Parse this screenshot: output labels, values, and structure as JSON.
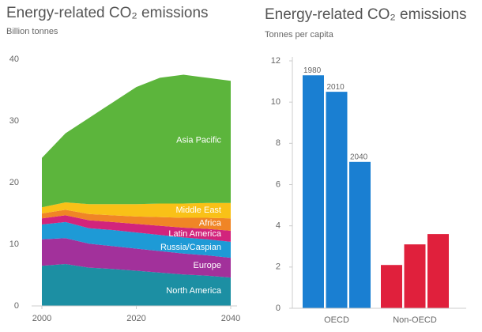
{
  "chart_data": [
    {
      "type": "stacked_area",
      "title": "Energy-related CO₂ emissions",
      "subtitle": "Billion tonnes",
      "x": [
        2000,
        2005,
        2010,
        2015,
        2020,
        2025,
        2030,
        2035,
        2040
      ],
      "xlim": [
        2000,
        2040
      ],
      "xticks": [
        2000,
        2020,
        2040
      ],
      "ylim": [
        0,
        40
      ],
      "yticks": [
        0,
        10,
        20,
        30,
        40
      ],
      "series": [
        {
          "name": "North America",
          "color": "#1c8fa3",
          "values": [
            6.5,
            6.8,
            6.2,
            6.0,
            5.7,
            5.4,
            5.1,
            4.9,
            4.6
          ]
        },
        {
          "name": "Europe",
          "color": "#a2319b",
          "values": [
            4.3,
            4.2,
            3.9,
            3.7,
            3.6,
            3.5,
            3.4,
            3.3,
            3.2
          ]
        },
        {
          "name": "Russia/Caspian",
          "color": "#1e9ad6",
          "values": [
            2.4,
            2.6,
            2.5,
            2.6,
            2.6,
            2.6,
            2.6,
            2.6,
            2.6
          ]
        },
        {
          "name": "Latin America",
          "color": "#d2247c",
          "values": [
            1.0,
            1.1,
            1.3,
            1.3,
            1.4,
            1.5,
            1.6,
            1.7,
            1.8
          ]
        },
        {
          "name": "Africa",
          "color": "#f08526",
          "values": [
            0.8,
            0.9,
            1.0,
            1.1,
            1.2,
            1.4,
            1.6,
            1.8,
            2.0
          ]
        },
        {
          "name": "Middle East",
          "color": "#f9c117",
          "values": [
            1.0,
            1.2,
            1.6,
            1.8,
            2.0,
            2.2,
            2.3,
            2.4,
            2.5
          ]
        },
        {
          "name": "Asia Pacific",
          "color": "#5cb53c",
          "values": [
            8.0,
            11.2,
            14.0,
            16.5,
            19.0,
            20.4,
            20.9,
            20.3,
            19.8
          ]
        }
      ]
    },
    {
      "type": "grouped_bar",
      "title": "Energy-related CO₂ emissions",
      "subtitle": "Tonnes per capita",
      "categories": [
        "OECD",
        "Non-OECD"
      ],
      "category_colors": [
        "#1a7fd2",
        "#e0203c"
      ],
      "ylim": [
        0,
        12
      ],
      "yticks": [
        0,
        2,
        4,
        6,
        8,
        10,
        12
      ],
      "series": [
        {
          "name": "1980",
          "values": [
            11.3,
            2.1
          ]
        },
        {
          "name": "2010",
          "values": [
            10.5,
            3.1
          ]
        },
        {
          "name": "2040",
          "values": [
            7.1,
            3.6
          ]
        }
      ]
    }
  ]
}
